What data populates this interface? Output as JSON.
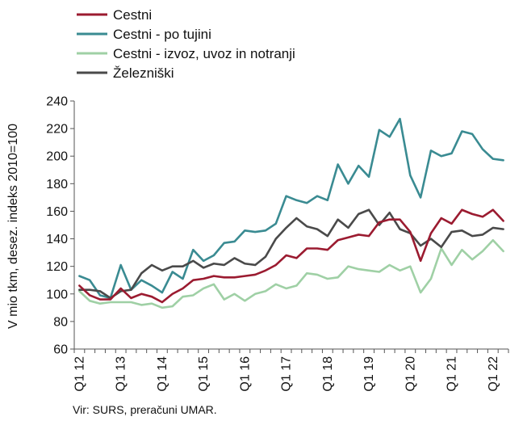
{
  "chart_data": {
    "type": "line",
    "title": "",
    "xlabel": "",
    "ylabel": "V mio tkm, desez. indeks 2010=100",
    "ylim": [
      60,
      240
    ],
    "yticks": [
      60,
      80,
      100,
      120,
      140,
      160,
      180,
      200,
      220,
      240
    ],
    "grid": false,
    "legend_position": "top-left",
    "x_tick_labels": [
      "Q1 12",
      "Q1 13",
      "Q1 14",
      "Q1 15",
      "Q1 16",
      "Q1 17",
      "Q1 18",
      "Q1 19",
      "Q1 20",
      "Q1 21",
      "Q1 22"
    ],
    "x": [
      "Q1 12",
      "Q2 12",
      "Q3 12",
      "Q4 12",
      "Q1 13",
      "Q2 13",
      "Q3 13",
      "Q4 13",
      "Q1 14",
      "Q2 14",
      "Q3 14",
      "Q4 14",
      "Q1 15",
      "Q2 15",
      "Q3 15",
      "Q4 15",
      "Q1 16",
      "Q2 16",
      "Q3 16",
      "Q4 16",
      "Q1 17",
      "Q2 17",
      "Q3 17",
      "Q4 17",
      "Q1 18",
      "Q2 18",
      "Q3 18",
      "Q4 18",
      "Q1 19",
      "Q2 19",
      "Q3 19",
      "Q4 19",
      "Q1 20",
      "Q2 20",
      "Q3 20",
      "Q4 20",
      "Q1 21",
      "Q2 21",
      "Q3 21",
      "Q4 21",
      "Q1 22",
      "Q2 22"
    ],
    "series": [
      {
        "name": "Cestni",
        "color": "#9b1b30",
        "values": [
          106,
          99,
          96,
          96,
          104,
          97,
          100,
          98,
          94,
          100,
          104,
          110,
          111,
          113,
          112,
          112,
          113,
          114,
          117,
          121,
          128,
          126,
          133,
          133,
          132,
          139,
          141,
          143,
          142,
          152,
          154,
          154,
          145,
          124,
          144,
          155,
          151,
          161,
          158,
          156,
          161,
          153
        ]
      },
      {
        "name": "Cestni - po tujini",
        "color": "#3a8b92",
        "values": [
          113,
          110,
          99,
          97,
          121,
          103,
          110,
          106,
          101,
          116,
          111,
          132,
          124,
          128,
          137,
          138,
          146,
          145,
          146,
          151,
          171,
          168,
          166,
          171,
          168,
          194,
          180,
          193,
          185,
          219,
          214,
          227,
          186,
          170,
          204,
          200,
          202,
          218,
          216,
          205,
          198,
          197
        ]
      },
      {
        "name": "Cestni - izvoz, uvoz in notranji",
        "color": "#9fd0a5",
        "values": [
          102,
          95,
          93,
          94,
          94,
          94,
          92,
          93,
          90,
          91,
          98,
          99,
          104,
          107,
          96,
          100,
          95,
          100,
          102,
          107,
          104,
          106,
          115,
          114,
          111,
          112,
          120,
          118,
          117,
          116,
          121,
          117,
          120,
          101,
          111,
          133,
          121,
          132,
          125,
          131,
          139,
          131
        ]
      },
      {
        "name": "Železniški",
        "color": "#4a4a4a",
        "values": [
          103,
          103,
          102,
          97,
          102,
          103,
          115,
          121,
          117,
          120,
          120,
          124,
          119,
          122,
          121,
          126,
          122,
          121,
          127,
          140,
          148,
          155,
          149,
          147,
          142,
          154,
          148,
          158,
          161,
          150,
          159,
          147,
          144,
          135,
          140,
          134,
          145,
          146,
          142,
          143,
          148,
          147
        ]
      }
    ]
  },
  "source": "Vir: SURS, preračuni UMAR."
}
